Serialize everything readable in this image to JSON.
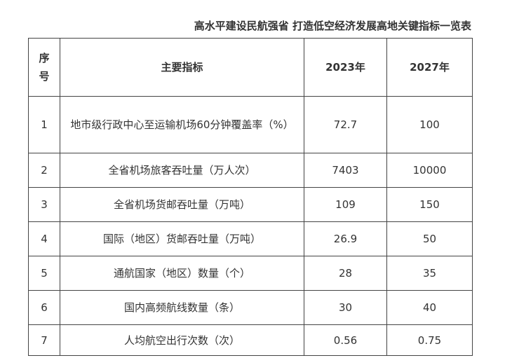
{
  "title": "高水平建设民航强省 打造低空经济发展高地关键指标一览表",
  "table": {
    "headers": {
      "no_line1": "序",
      "no_line2": "号",
      "indicator": "主要指标",
      "y2023": "2023年",
      "y2027": "2027年"
    },
    "rows": [
      {
        "no": "1",
        "indicator": "地市级行政中心至运输机场60分钟覆盖率（%）",
        "y2023": "72.7",
        "y2027": "100"
      },
      {
        "no": "2",
        "indicator": "全省机场旅客吞吐量（万人次）",
        "y2023": "7403",
        "y2027": "10000"
      },
      {
        "no": "3",
        "indicator": "全省机场货邮吞吐量（万吨）",
        "y2023": "109",
        "y2027": "150"
      },
      {
        "no": "4",
        "indicator": "国际（地区）货邮吞吐量（万吨）",
        "y2023": "26.9",
        "y2027": "50"
      },
      {
        "no": "5",
        "indicator": "通航国家（地区）数量（个）",
        "y2023": "28",
        "y2027": "35"
      },
      {
        "no": "6",
        "indicator": "国内高频航线数量（条）",
        "y2023": "30",
        "y2027": "40"
      },
      {
        "no": "7",
        "indicator": "人均航空出行次数（次）",
        "y2023": "0.56",
        "y2027": "0.75"
      }
    ]
  }
}
